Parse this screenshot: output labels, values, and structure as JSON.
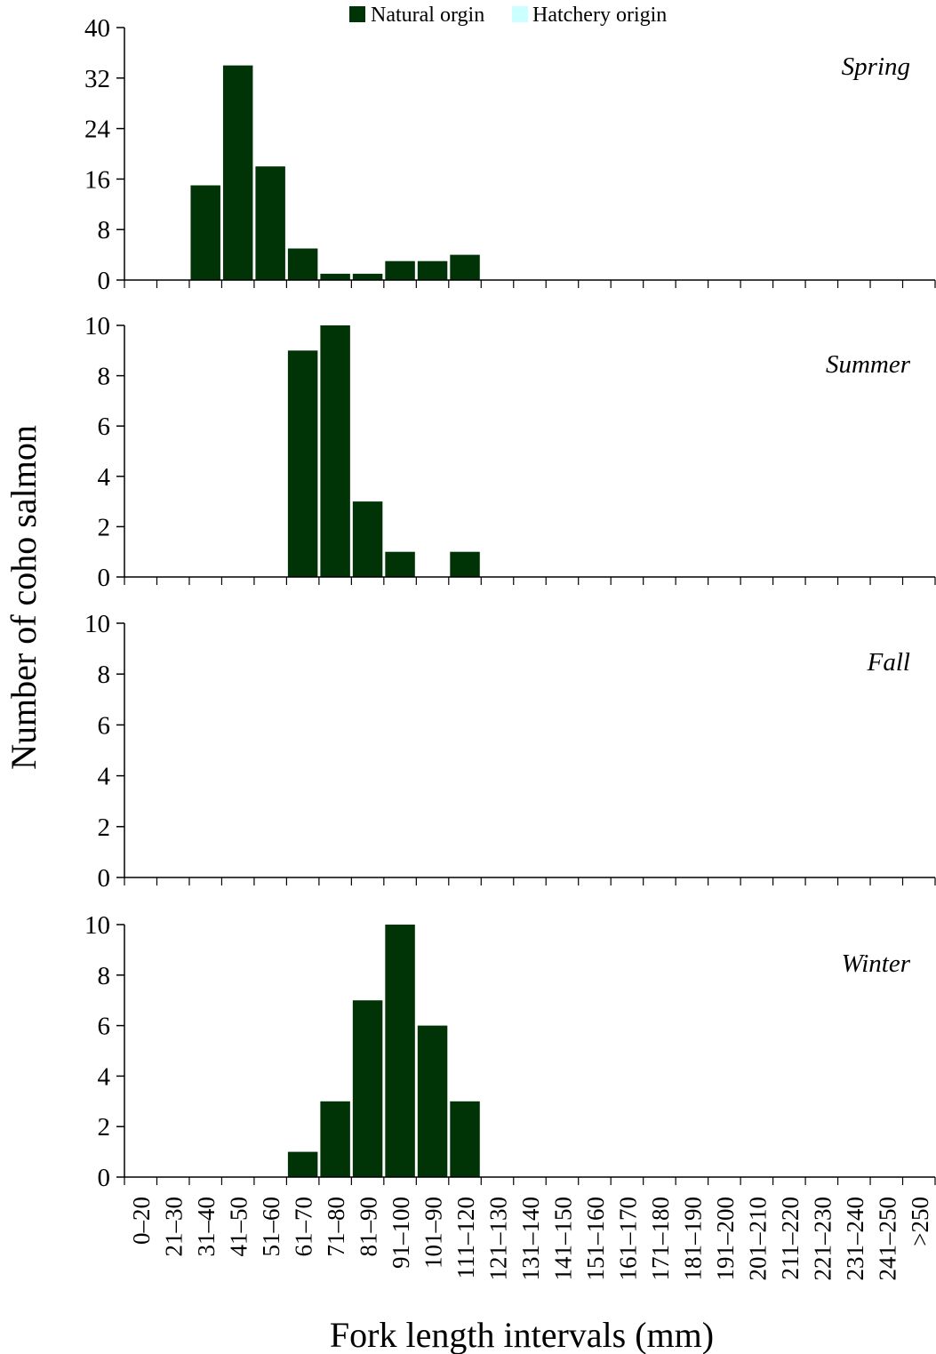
{
  "colors": {
    "natural": "#003306",
    "hatchery": "#ccffff",
    "axis": "#000000"
  },
  "chart_data": {
    "type": "bar",
    "legend": {
      "placement": "top-center",
      "entries": [
        {
          "name": "Natural orgin",
          "color_key": "natural"
        },
        {
          "name": "Hatchery origin",
          "color_key": "hatchery"
        }
      ]
    },
    "xlabel": "Fork length intervals (mm)",
    "ylabel": "Number of coho salmon",
    "categories": [
      "0–20",
      "21–30",
      "31–40",
      "41–50",
      "51–60",
      "61–70",
      "71–80",
      "81–90",
      "91–100",
      "101–90",
      "111–120",
      "121–130",
      "131–140",
      "141–150",
      "151–160",
      "161–170",
      "171–180",
      "181–190",
      "191–200",
      "201–210",
      "211–220",
      "221–230",
      "231–240",
      "241–250",
      ">250"
    ],
    "panels": [
      {
        "label": "Spring",
        "ylim": [
          0,
          40
        ],
        "yticks": [
          0,
          8,
          16,
          24,
          32,
          40
        ],
        "series": [
          {
            "name": "Natural orgin",
            "values": [
              0,
              0,
              15,
              34,
              18,
              5,
              1,
              1,
              3,
              3,
              4,
              0,
              0,
              0,
              0,
              0,
              0,
              0,
              0,
              0,
              0,
              0,
              0,
              0,
              0
            ]
          },
          {
            "name": "Hatchery origin",
            "values": [
              0,
              0,
              0,
              0,
              0,
              0,
              0,
              0,
              0,
              0,
              0,
              0,
              0,
              0,
              0,
              0,
              0,
              0,
              0,
              0,
              0,
              0,
              0,
              0,
              0
            ]
          }
        ]
      },
      {
        "label": "Summer",
        "ylim": [
          0,
          10
        ],
        "yticks": [
          0,
          2,
          4,
          6,
          8,
          10
        ],
        "series": [
          {
            "name": "Natural orgin",
            "values": [
              0,
              0,
              0,
              0,
              0,
              9,
              10,
              3,
              1,
              0,
              1,
              0,
              0,
              0,
              0,
              0,
              0,
              0,
              0,
              0,
              0,
              0,
              0,
              0,
              0
            ]
          },
          {
            "name": "Hatchery origin",
            "values": [
              0,
              0,
              0,
              0,
              0,
              0,
              0,
              0,
              0,
              0,
              0,
              0,
              0,
              0,
              0,
              0,
              0,
              0,
              0,
              0,
              0,
              0,
              0,
              0,
              0
            ]
          }
        ]
      },
      {
        "label": "Fall",
        "ylim": [
          0,
          10
        ],
        "yticks": [
          0,
          2,
          4,
          6,
          8,
          10
        ],
        "series": [
          {
            "name": "Natural orgin",
            "values": [
              0,
              0,
              0,
              0,
              0,
              0,
              0,
              0,
              0,
              0,
              0,
              0,
              0,
              0,
              0,
              0,
              0,
              0,
              0,
              0,
              0,
              0,
              0,
              0,
              0
            ]
          },
          {
            "name": "Hatchery origin",
            "values": [
              0,
              0,
              0,
              0,
              0,
              0,
              0,
              0,
              0,
              0,
              0,
              0,
              0,
              0,
              0,
              0,
              0,
              0,
              0,
              0,
              0,
              0,
              0,
              0,
              0
            ]
          }
        ]
      },
      {
        "label": "Winter",
        "ylim": [
          0,
          10
        ],
        "yticks": [
          0,
          2,
          4,
          6,
          8,
          10
        ],
        "series": [
          {
            "name": "Natural orgin",
            "values": [
              0,
              0,
              0,
              0,
              0,
              1,
              3,
              7,
              10,
              6,
              3,
              0,
              0,
              0,
              0,
              0,
              0,
              0,
              0,
              0,
              0,
              0,
              0,
              0,
              0
            ]
          },
          {
            "name": "Hatchery origin",
            "values": [
              0,
              0,
              0,
              0,
              0,
              0,
              0,
              0,
              0,
              0,
              0,
              0,
              0,
              0,
              0,
              0,
              0,
              0,
              0,
              0,
              0,
              0,
              0,
              0,
              0
            ]
          }
        ]
      }
    ]
  }
}
